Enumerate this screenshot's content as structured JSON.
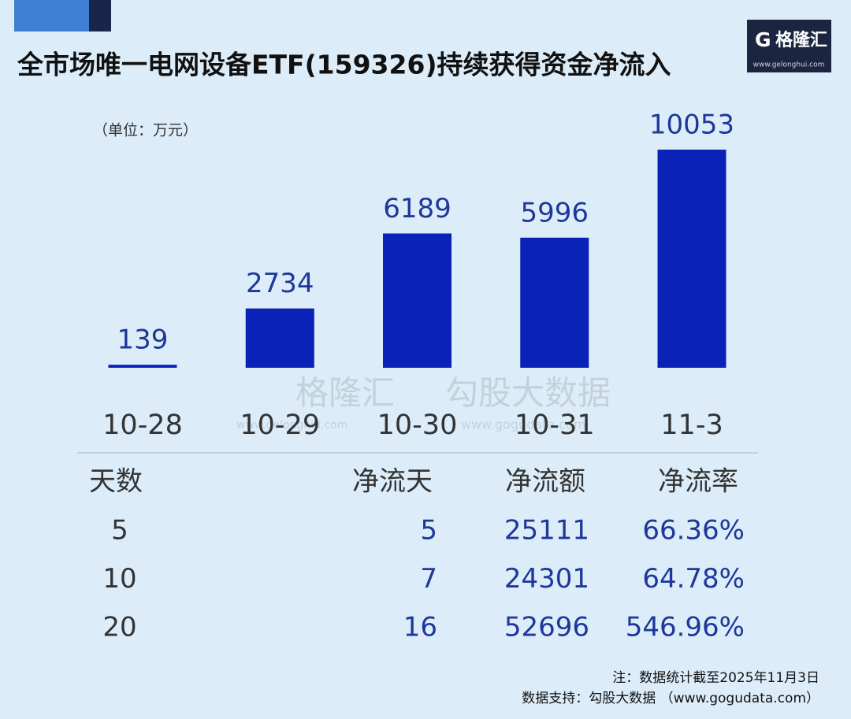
{
  "header": {
    "title": "全市场唯一电网设备ETF(159326)持续获得资金净流入",
    "logo_name": "格隆汇",
    "logo_url": "www.gelonghui.com"
  },
  "chart_data": {
    "type": "bar",
    "unit_label": "（单位：万元）",
    "categories": [
      "10-28",
      "10-29",
      "10-30",
      "10-31",
      "11-3"
    ],
    "values": [
      139,
      2734,
      6189,
      5996,
      10053
    ],
    "color": "#0a22b8"
  },
  "table": {
    "columns": [
      "天数",
      "净流天",
      "净流额",
      "净流率"
    ],
    "rows": [
      [
        "5",
        "5",
        "25111",
        "66.36%"
      ],
      [
        "10",
        "7",
        "24301",
        "64.78%"
      ],
      [
        "20",
        "16",
        "52696",
        "546.96%"
      ]
    ]
  },
  "watermark": [
    "格隆汇",
    "www.gelonghui.com",
    "勾股大数据",
    "www.gogudata.com"
  ],
  "notes": [
    "注：数据统计截至2025年11月3日",
    "数据支持：勾股大数据 （www.gogudata.com）"
  ]
}
